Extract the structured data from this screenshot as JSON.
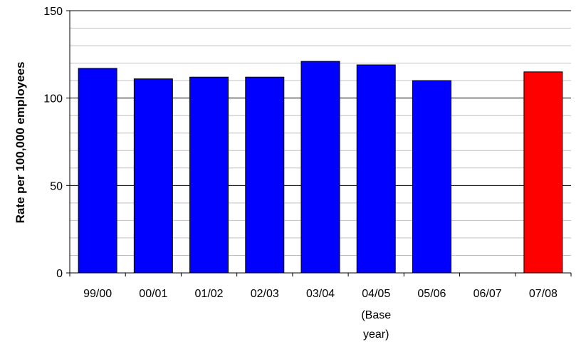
{
  "chart_data": {
    "type": "bar",
    "title": "",
    "xlabel": "",
    "ylabel": "Rate per 100,000 employees",
    "categories": [
      "99/00",
      "00/01",
      "01/02",
      "02/03",
      "03/04",
      "04/05",
      "05/06",
      "06/07",
      "07/08"
    ],
    "category_sublabels": [
      "",
      "",
      "",
      "",
      "",
      "(Base\nyear)",
      "",
      "",
      ""
    ],
    "values": [
      117,
      111,
      112,
      112,
      121,
      119,
      110,
      null,
      115
    ],
    "bar_colors": [
      "#0000ff",
      "#0000ff",
      "#0000ff",
      "#0000ff",
      "#0000ff",
      "#0000ff",
      "#0000ff",
      "#0000ff",
      "#ff0000"
    ],
    "ylim": [
      0,
      150
    ],
    "y_ticks": [
      0,
      50,
      100,
      150
    ],
    "y_tick_labels": [
      "0",
      "50",
      "100",
      "150"
    ],
    "minor_gridlines_every": 10,
    "grid": true,
    "legend": "none"
  },
  "colors": {
    "series_default": "#0000ff",
    "highlight": "#ff0000",
    "axis": "#000000",
    "major_grid": "#000000",
    "minor_grid": "#c0c0c0"
  }
}
